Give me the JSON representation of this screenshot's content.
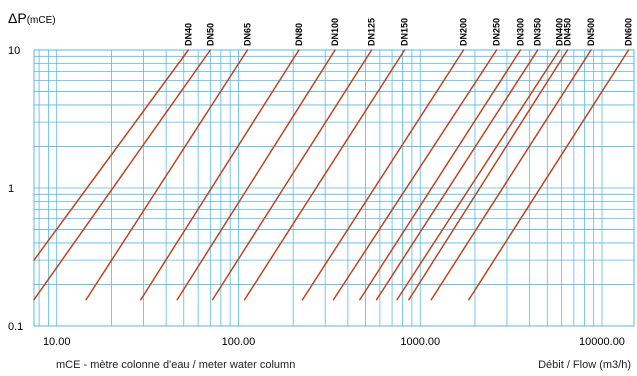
{
  "chart_data": {
    "type": "line",
    "title": "",
    "y_axis": {
      "label": "ΔP",
      "unit": "(mCE)",
      "scale": "log",
      "range": [
        0.1,
        10
      ],
      "tick_labels": [
        "10",
        "1",
        "0.1"
      ]
    },
    "x_axis": {
      "label": "Débit / Flow (m3/h)",
      "scale": "log",
      "range": [
        7.5,
        15000
      ],
      "tick_labels": [
        "10.00",
        "100.00",
        "1000.00",
        "10000.00"
      ]
    },
    "footnote": "mCE - mètre colonne d'eau / meter water column",
    "grid": true,
    "line_color": "#c0441f",
    "grid_color": "#59b9e8",
    "series": [
      {
        "name": "DN40",
        "x": [
          7.5,
          53.0
        ],
        "y": [
          0.3,
          10
        ]
      },
      {
        "name": "DN50",
        "x": [
          7.5,
          70.0
        ],
        "y": [
          0.155,
          10
        ]
      },
      {
        "name": "DN65",
        "x": [
          14.5,
          112.0
        ],
        "y": [
          0.155,
          10
        ]
      },
      {
        "name": "DN80",
        "x": [
          29.0,
          215.0
        ],
        "y": [
          0.155,
          10
        ]
      },
      {
        "name": "DN100",
        "x": [
          46.0,
          340.0
        ],
        "y": [
          0.155,
          10
        ]
      },
      {
        "name": "DN125",
        "x": [
          72.0,
          540.0
        ],
        "y": [
          0.155,
          10
        ]
      },
      {
        "name": "DN150",
        "x": [
          108.0,
          820.0
        ],
        "y": [
          0.155,
          10
        ]
      },
      {
        "name": "DN200",
        "x": [
          225.0,
          1730.0
        ],
        "y": [
          0.155,
          10
        ]
      },
      {
        "name": "DN250",
        "x": [
          333.0,
          2630.0
        ],
        "y": [
          0.155,
          10
        ]
      },
      {
        "name": "DN300",
        "x": [
          465.0,
          3560.0
        ],
        "y": [
          0.155,
          10
        ]
      },
      {
        "name": "DN350",
        "x": [
          575.0,
          4430.0
        ],
        "y": [
          0.155,
          10
        ]
      },
      {
        "name": "DN400",
        "x": [
          745.0,
          5830.0
        ],
        "y": [
          0.155,
          10
        ]
      },
      {
        "name": "DN450",
        "x": [
          866.0,
          6460.0
        ],
        "y": [
          0.155,
          10
        ]
      },
      {
        "name": "DN500",
        "x": [
          1150.0,
          8700.0
        ],
        "y": [
          0.155,
          10
        ]
      },
      {
        "name": "DN600",
        "x": [
          1850.0,
          14000.0
        ],
        "y": [
          0.155,
          10
        ]
      }
    ]
  }
}
